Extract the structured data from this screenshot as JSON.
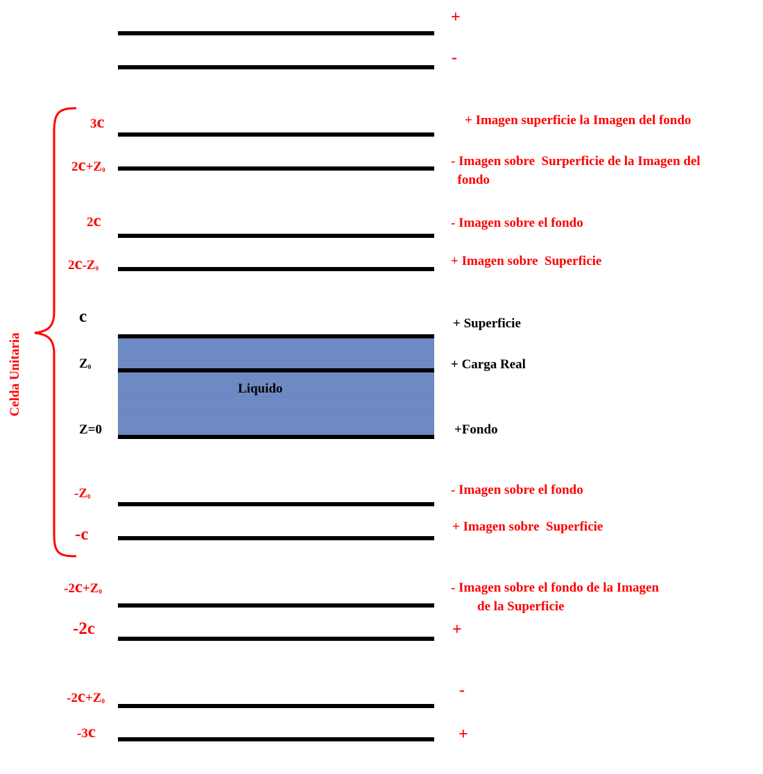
{
  "colors": {
    "accent": "#ff0000",
    "plate": "#000000",
    "liquid": "#6b89c6"
  },
  "unit_cell_label": "Celda Unitaria",
  "liquid_label": "Liquido",
  "left_labels": {
    "l_3c": {
      "coef": "3",
      "c": "c",
      "sub": ""
    },
    "l_2c_z0": {
      "coef": "2",
      "c": "c",
      "rest": "+Z",
      "sub": "0"
    },
    "l_2c": {
      "coef": "2",
      "c": "c",
      "sub": ""
    },
    "l_2c_mz0": {
      "coef": "2",
      "c": "c",
      "rest": "-Z",
      "sub": "0"
    },
    "l_c": {
      "coef": "",
      "c": "c",
      "sub": ""
    },
    "l_z0": {
      "rest": "Z",
      "sub": "0"
    },
    "l_zero": {
      "rest": "Z=0"
    },
    "l_mz0": {
      "rest": "-Z",
      "sub": "0"
    },
    "l_mc": {
      "coef": "-",
      "c": "c",
      "sub": ""
    },
    "l_m2c_z0": {
      "coef": "-2",
      "c": "c",
      "rest": "+Z",
      "sub": "0"
    },
    "l_m2c": {
      "coef": "-2",
      "c": "c",
      "sub": ""
    },
    "l_m2c_z0b": {
      "coef": "-2",
      "c": "c",
      "rest": "+Z",
      "sub": "0"
    },
    "l_m3c": {
      "coef": "-3",
      "c": "c",
      "sub": ""
    }
  },
  "right_labels": {
    "r_top_plus": "+",
    "r_top_minus": "-",
    "r_3c": "+ Imagen superficie la Imagen del fondo",
    "r_2c_z0": "- Imagen sobre  Surperficie de la Imagen del\n  fondo",
    "r_2c": "- Imagen sobre el fondo",
    "r_2c_mz0": "+ Imagen sobre  Superficie",
    "r_c": "+ Superficie",
    "r_z0": "+ Carga Real",
    "r_zero": "+Fondo",
    "r_mz0": "- Imagen sobre el fondo",
    "r_mc": "+ Imagen sobre  Superficie",
    "r_m2c_z0": "- Imagen sobre el fondo de la Imagen\n        de la Superficie",
    "r_m2c": "+",
    "r_m2c_z0b": "-",
    "r_m3c": "+"
  }
}
